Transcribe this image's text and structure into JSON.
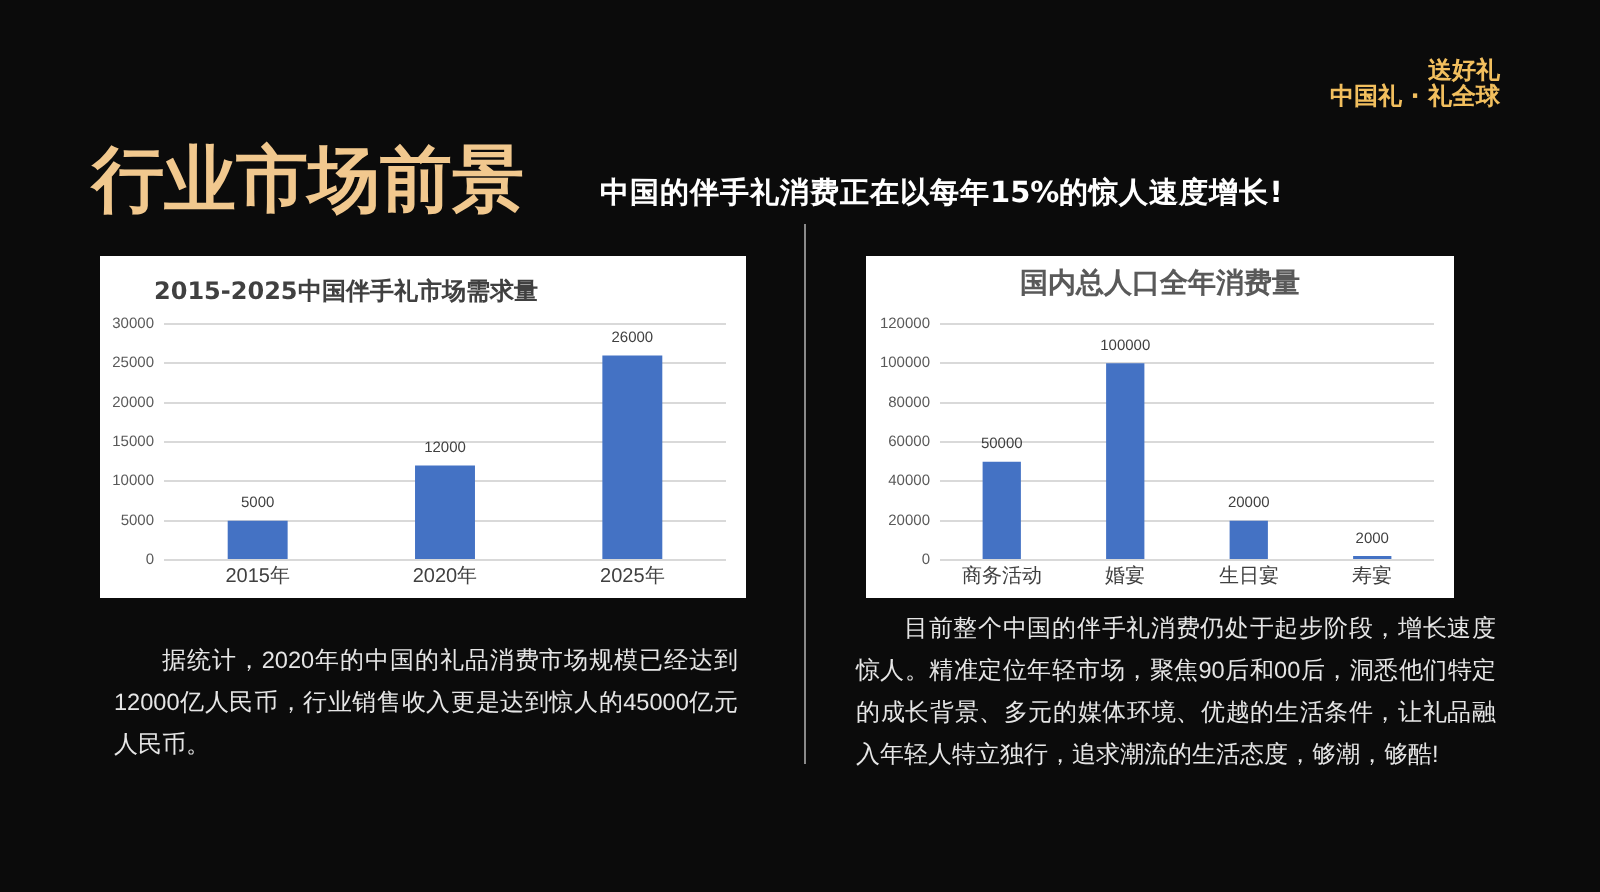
{
  "chart_data": [
    {
      "type": "bar",
      "title": "2015-2025中国伴手礼市场需求量",
      "categories": [
        "2015年",
        "2020年",
        "2025年"
      ],
      "values": [
        5000,
        12000,
        26000
      ],
      "color": "#4472c4",
      "ylim": [
        0,
        30000
      ],
      "yticks": [
        0,
        5000,
        10000,
        15000,
        20000,
        25000,
        30000
      ],
      "grid": "y",
      "data_labels": true,
      "annotations": [
        "行业市场前景",
        "中国的伴手礼消费正在以每年15%的惊人速度增长!",
        "送好礼",
        "中国礼 · 礼全球",
        "据统计，2020年的中国的礼品消费市场规模已经达到12000亿人民币，行业销售收入更是达到惊人的45000亿元人民币。"
      ]
    },
    {
      "type": "bar",
      "title": "国内总人口全年消费量",
      "categories": [
        "商务活动",
        "婚宴",
        "生日宴",
        "寿宴"
      ],
      "values": [
        50000,
        100000,
        20000,
        2000
      ],
      "color": "#4472c4",
      "ylim": [
        0,
        120000
      ],
      "yticks": [
        0,
        20000,
        40000,
        60000,
        80000,
        100000,
        120000
      ],
      "grid": "y",
      "data_labels": true,
      "annotations": [
        "目前整个中国的伴手礼消费仍处于起步阶段，增长速度惊人。精准定位年轻市场，聚焦90后和00后，洞悉他们特定的成长背景、多元的媒体环境、优越的生活条件，让礼品融入年轻人特立独行，追求潮流的生活态度，够潮，够酷!"
      ]
    }
  ]
}
